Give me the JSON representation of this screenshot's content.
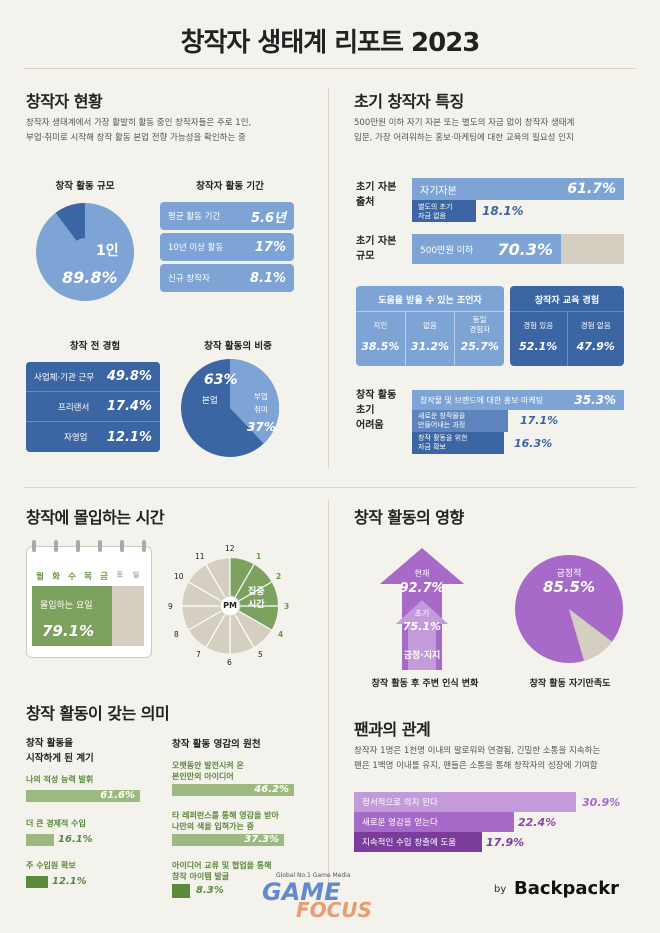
{
  "title": "창작자 생태계 리포트 2023",
  "s1": {
    "heading": "창작자 현황",
    "desc1": "창작자 생태계에서 가장 활발히 활동 중인 창작자들은 주로 1인,",
    "desc2": "부업·취미로 시작해 창작 활동 본업 전향 가능성을 확인하는 중",
    "scale": {
      "label": "창작 활동 규모",
      "center": "1인",
      "value": "89.8%",
      "fraction": 0.898
    },
    "period": {
      "label": "창작자 활동 기간",
      "rows": [
        {
          "k": "평균 활동 기간",
          "v": "5.6년"
        },
        {
          "k": "10년 이상 활동",
          "v": "17%"
        },
        {
          "k": "신규 창작자",
          "v": "8.1%"
        }
      ]
    },
    "prev": {
      "label": "창작 전 경험",
      "rows": [
        {
          "k": "사업체·기관 근무",
          "v": "49.8%"
        },
        {
          "k": "프리랜서",
          "v": "17.4%"
        },
        {
          "k": "자영업",
          "v": "12.1%"
        }
      ]
    },
    "ratio": {
      "label": "창작 활동의 비중",
      "main_v": "63%",
      "main_k": "본업",
      "side_k1": "부업",
      "side_k2": "취미",
      "side_v": "37%",
      "fraction": 0.63
    }
  },
  "s2": {
    "heading": "초기 창작자 특징",
    "desc1": "500만원 이하 자기 자본 또는 별도의 자금 없이 창작자 생태계",
    "desc2": "입문, 가장 어려워하는 홍보·마케팅에 대한 교육의 필요성 인지",
    "src": {
      "label1": "초기 자본",
      "label2": "출처",
      "main_k": "자기자본",
      "main_v": "61.7%",
      "sub_k1": "별도의 초기",
      "sub_k2": "자금 없음",
      "sub_v": "18.1%"
    },
    "scale": {
      "label1": "초기 자본",
      "label2": "규모",
      "k": "500만원 이하",
      "v": "70.3%"
    },
    "adv": {
      "title": "도움을 받을 수 있는 조언자",
      "cols": [
        {
          "k": "지인",
          "v": "38.5%"
        },
        {
          "k": "없음",
          "v": "31.2%"
        },
        {
          "k1": "동일",
          "k2": "경험자",
          "v": "25.7%"
        }
      ]
    },
    "edu": {
      "title": "창작자 교육 경험",
      "cols": [
        {
          "k": "경험 있음",
          "v": "52.1%"
        },
        {
          "k": "경험 없음",
          "v": "47.9%"
        }
      ]
    },
    "diff": {
      "label1": "창작 활동",
      "label2": "초기",
      "label3": "어려움",
      "main_k": "창작물 및 브랜드에 대한 홍보·마케팅",
      "main_v": "35.3%",
      "r2k1": "새로운 창작물을",
      "r2k2": "만들어내는 과정",
      "r2v": "17.1%",
      "r3k1": "창작 활동을 위한",
      "r3k2": "자금 확보",
      "r3v": "16.3%"
    }
  },
  "s3": {
    "heading": "창작에 몰입하는 시간",
    "days": [
      "월",
      "화",
      "수",
      "목",
      "금",
      "토",
      "일"
    ],
    "day_label": "몰입하는 요일",
    "day_value": "79.1%",
    "clock_center": "PM",
    "focus1": "집중",
    "focus2": "시간",
    "hours": [
      "12",
      "1",
      "2",
      "3",
      "4",
      "5",
      "6",
      "7",
      "8",
      "9",
      "10",
      "11"
    ]
  },
  "s4": {
    "heading": "창작 활동의 영향",
    "now_k": "현재",
    "now_v": "92.7%",
    "init_k": "초기",
    "init_v": "75.1%",
    "arrow_tag": "긍정·지지",
    "arrow_caption": "창작 활동 후 주변 인식 변화",
    "pie_k": "긍정적",
    "pie_v": "85.5%",
    "pie_fraction": 0.855,
    "pie_caption": "창작 활동 자기만족도"
  },
  "s5": {
    "heading": "창작 활동이 갖는 의미",
    "left_t1": "창작 활동을",
    "left_t2": "시작하게 된 계기",
    "left": [
      {
        "k": "나의 적성 능력 발휘",
        "v": "61.6%",
        "f": 0.616
      },
      {
        "k": "더 큰 경제적 수입",
        "v": "16.1%",
        "f": 0.161
      },
      {
        "k": "주 수입원 확보",
        "v": "12.1%",
        "f": 0.121
      }
    ],
    "right_t": "창작 활동 영감의 원천",
    "right": [
      {
        "k1": "오랫동안 발전시켜 온",
        "k2": "본인만의 아이디어",
        "v": "46.2%",
        "f": 0.462
      },
      {
        "k1": "타 레퍼런스를 통해 영감을 받아",
        "k2": "나만의 색을 입혀가는 중",
        "v": "37.3%",
        "f": 0.373
      },
      {
        "k1": "아이디어 교류 및 협업을 통해",
        "k2": "창작 아이템 발굴",
        "v": "8.3%",
        "f": 0.083
      }
    ]
  },
  "s6": {
    "heading": "팬과의 관계",
    "desc1": "창작자 1명은 1천명 이내의 팔로워와 연결됨, 긴밀한 소통을 지속하는",
    "desc2": "팬은 1백명 이내를 유지, 팬들은 소통을 통해 창작자의 성장에 기여함",
    "rows": [
      {
        "k": "정서적으로 의지 된다",
        "v": "30.9%",
        "f": 0.309
      },
      {
        "k": "새로운 영감을 얻는다",
        "v": "22.4%",
        "f": 0.224
      },
      {
        "k": "지속적인 수입 창출에 도움",
        "v": "17.9%",
        "f": 0.179
      }
    ]
  },
  "footer": {
    "wm_small": "Global No.1 Game Media",
    "wm_game": "GAME",
    "wm_focus": "FOCUS",
    "by": "by",
    "brand": "Backpackr"
  },
  "colors": {
    "blue": "#7ea4d6",
    "navy": "#3c65a4",
    "green": "#7da25f",
    "purple": "#a86ac8"
  }
}
